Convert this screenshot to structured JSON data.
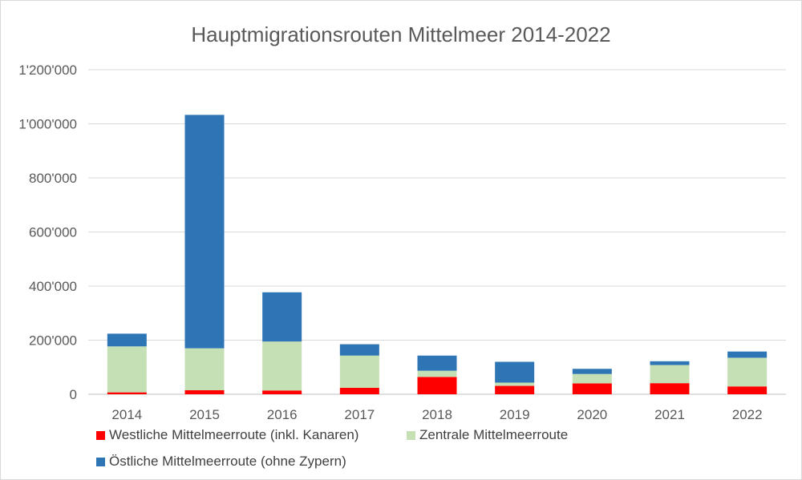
{
  "chart_data": {
    "type": "bar",
    "stacked": true,
    "title": "Hauptmigrationsrouten Mittelmeer 2014-2022",
    "categories": [
      "2014",
      "2015",
      "2016",
      "2017",
      "2018",
      "2019",
      "2020",
      "2021",
      "2022"
    ],
    "series": [
      {
        "name": "Westliche Mittelmeerroute (inkl. Kanaren)",
        "color": "#ff0000",
        "values": [
          7000,
          15000,
          14000,
          24000,
          64000,
          31000,
          40000,
          41000,
          29000
        ]
      },
      {
        "name": "Zentrale Mittelmeerroute",
        "color": "#c5e0b4",
        "values": [
          170000,
          155000,
          181000,
          119000,
          23000,
          12000,
          35000,
          67000,
          106000
        ]
      },
      {
        "name": "Östliche Mittelmeerroute (ohne Zypern)",
        "color": "#2e75b6",
        "values": [
          47000,
          863000,
          182000,
          42000,
          56000,
          77000,
          19000,
          14000,
          23000
        ]
      }
    ],
    "ylim": [
      0,
      1200000
    ],
    "yticks": [
      "0",
      "200'000",
      "400'000",
      "600'000",
      "800'000",
      "1'000'000",
      "1'200'000"
    ],
    "grid": true,
    "legend_position": "bottom"
  }
}
